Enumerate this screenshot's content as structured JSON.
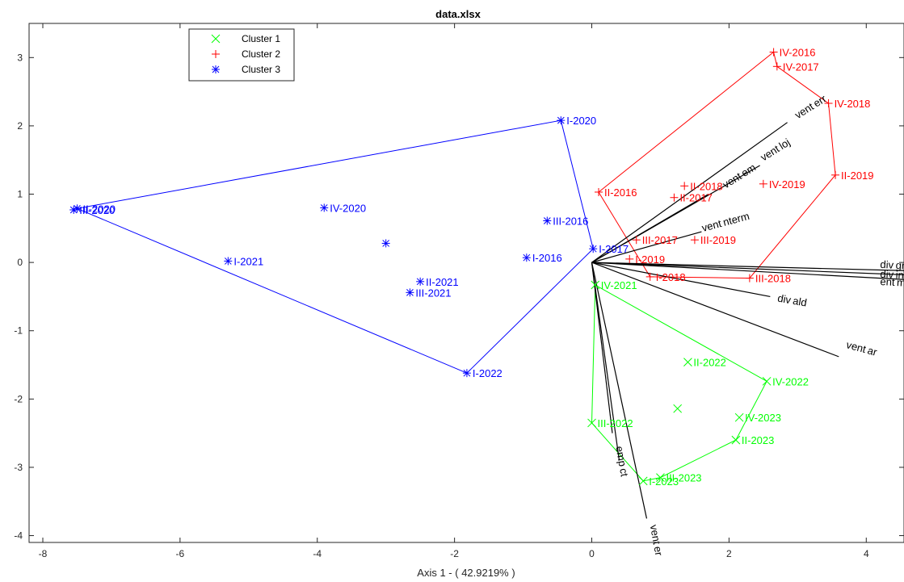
{
  "chart_data": {
    "type": "scatter",
    "title": "data.xlsx",
    "xlabel": "Axis 1 - ( 42.9219% )",
    "ylabel": "",
    "xlim": [
      -8.2,
      4.55
    ],
    "ylim": [
      -4.1,
      3.5
    ],
    "xticks": [
      -8,
      -6,
      -4,
      -2,
      0,
      2,
      4
    ],
    "yticks": [
      -4,
      -3,
      -2,
      -1,
      0,
      1,
      2,
      3
    ],
    "grid": false,
    "legend_position": "top-left",
    "colors": {
      "cluster1": "#00ff00",
      "cluster2": "#ff0000",
      "cluster3": "#0000ff",
      "vectors": "#000000"
    },
    "clusters": [
      {
        "name": "Cluster 1",
        "marker": "x",
        "color": "#00ff00",
        "centroid": [
          1.25,
          -2.14
        ],
        "hull": [
          "IV-2021",
          "IV-2022",
          "II-2023",
          "III-2023",
          "I-2023",
          "III-2022"
        ],
        "points": [
          {
            "label": "IV-2021",
            "x": 0.05,
            "y": -0.33
          },
          {
            "label": "II-2022",
            "x": 1.4,
            "y": -1.46
          },
          {
            "label": "IV-2022",
            "x": 2.55,
            "y": -1.74
          },
          {
            "label": "IV-2023",
            "x": 2.15,
            "y": -2.27
          },
          {
            "label": "II-2023",
            "x": 2.1,
            "y": -2.6
          },
          {
            "label": "III-2022",
            "x": 0.0,
            "y": -2.35
          },
          {
            "label": "III-2023",
            "x": 1.0,
            "y": -3.15
          },
          {
            "label": "I-2023",
            "x": 0.75,
            "y": -3.2
          }
        ]
      },
      {
        "name": "Cluster 2",
        "marker": "+",
        "color": "#ff0000",
        "centroid": null,
        "hull": [
          "II-2016",
          "IV-2016",
          "IV-2017",
          "IV-2018",
          "II-2019",
          "III-2018",
          "I-2018"
        ],
        "points": [
          {
            "label": "IV-2016",
            "x": 2.65,
            "y": 3.08
          },
          {
            "label": "IV-2017",
            "x": 2.7,
            "y": 2.87
          },
          {
            "label": "IV-2018",
            "x": 3.45,
            "y": 2.33
          },
          {
            "label": "II-2019",
            "x": 3.55,
            "y": 1.28
          },
          {
            "label": "IV-2019",
            "x": 2.5,
            "y": 1.15
          },
          {
            "label": "II-2016",
            "x": 0.1,
            "y": 1.03
          },
          {
            "label": "II-2018",
            "x": 1.35,
            "y": 1.12
          },
          {
            "label": "II-2017",
            "x": 1.2,
            "y": 0.95
          },
          {
            "label": "III-2017",
            "x": 0.65,
            "y": 0.33
          },
          {
            "label": "III-2019",
            "x": 1.5,
            "y": 0.33
          },
          {
            "label": "I-2019",
            "x": 0.55,
            "y": 0.05
          },
          {
            "label": "I-2018",
            "x": 0.85,
            "y": -0.21
          },
          {
            "label": "III-2018",
            "x": 2.3,
            "y": -0.23
          }
        ]
      },
      {
        "name": "Cluster 3",
        "marker": "*",
        "color": "#0000ff",
        "centroid": [
          -3.0,
          0.28
        ],
        "hull": [
          "I-2020",
          "I-2017",
          "I-2022",
          "II-2020"
        ],
        "points": [
          {
            "label": "I-2020",
            "x": -0.45,
            "y": 2.08
          },
          {
            "label": "II-2020",
            "x": -7.5,
            "y": 0.79
          },
          {
            "label": "III-2020",
            "x": -7.55,
            "y": 0.77
          },
          {
            "label": "IV-2020",
            "x": -3.9,
            "y": 0.8
          },
          {
            "label": "III-2016",
            "x": -0.65,
            "y": 0.61
          },
          {
            "label": "I-2017",
            "x": 0.02,
            "y": 0.2
          },
          {
            "label": "I-2016",
            "x": -0.95,
            "y": 0.07
          },
          {
            "label": "I-2021",
            "x": -5.3,
            "y": 0.02
          },
          {
            "label": "II-2021",
            "x": -2.5,
            "y": -0.28
          },
          {
            "label": "III-2021",
            "x": -2.65,
            "y": -0.44
          },
          {
            "label": "I-2022",
            "x": -1.82,
            "y": -1.62
          }
        ]
      }
    ],
    "vectors": [
      {
        "name": "vent_err",
        "x": 2.85,
        "y": 2.05
      },
      {
        "name": "vent_a_loj",
        "x": 2.45,
        "y": 1.42
      },
      {
        "name": "vent_a_em",
        "x": 1.7,
        "y": 1.0
      },
      {
        "name": "vent_nterm",
        "x": 1.6,
        "y": 0.45
      },
      {
        "name": "div_gre",
        "x": 4.55,
        "y": -0.12
      },
      {
        "name": "div_ing",
        "x": 4.55,
        "y": -0.18
      },
      {
        "name": "ent_m_ing",
        "x": 4.55,
        "y": -0.25
      },
      {
        "name": "div_s_ald",
        "x": 2.6,
        "y": -0.5
      },
      {
        "name": "vent_m_ar",
        "x": 3.6,
        "y": -1.38
      },
      {
        "name": "emp_a_ct_1",
        "x": 0.3,
        "y": -2.5
      },
      {
        "name": "emp_a_ct_2",
        "x": 0.4,
        "y": -2.9
      },
      {
        "name": "vent_a_er",
        "x": 0.8,
        "y": -3.75
      }
    ],
    "vector_labels": [
      {
        "text": "vent err",
        "x": 3.0,
        "y": 2.1,
        "rotate": -32
      },
      {
        "text": "vent loj",
        "x": 2.5,
        "y": 1.48,
        "rotate": -32
      },
      {
        "text": "vent em",
        "x": 1.95,
        "y": 1.08,
        "rotate": -32
      },
      {
        "text": "vent nterm",
        "x": 1.62,
        "y": 0.45,
        "rotate": -15
      },
      {
        "text": "div gre",
        "x": 4.2,
        "y": -0.08,
        "rotate": 3
      },
      {
        "text": "div ing",
        "x": 4.2,
        "y": -0.22,
        "rotate": 3
      },
      {
        "text": "ent m",
        "x": 4.2,
        "y": -0.33,
        "rotate": 3
      },
      {
        "text": "div ald",
        "x": 2.7,
        "y": -0.57,
        "rotate": 10
      },
      {
        "text": "vent ar",
        "x": 3.7,
        "y": -1.25,
        "rotate": 15
      },
      {
        "text": "emp ct",
        "x": 0.35,
        "y": -2.7,
        "rotate": 80
      },
      {
        "text": "vent er",
        "x": 0.85,
        "y": -3.85,
        "rotate": 80
      }
    ]
  }
}
